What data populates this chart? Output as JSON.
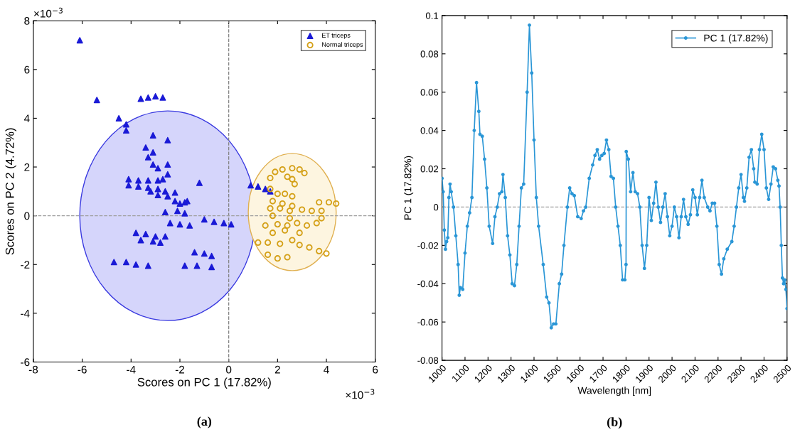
{
  "chart_data": [
    {
      "type": "scatter",
      "xlabel": "Scores on PC 1 (17.82%)",
      "ylabel": "Scores on PC 2 (4.72%)",
      "annotations": [
        "×10$^{−3}$",
        "×10$^{−3}$",
        "(a)"
      ],
      "xlim": [
        -8,
        6
      ],
      "xticks": [
        -8,
        -6,
        -4,
        -2,
        0,
        2,
        4,
        6
      ],
      "ylim": [
        -6,
        8
      ],
      "yticks": [
        -6,
        -4,
        -2,
        0,
        2,
        4,
        6,
        8
      ],
      "grid": false,
      "legend": "top right",
      "ref_lines": [
        {
          "axis": "x",
          "value": 0,
          "color": "#808080",
          "line_style": "dashed"
        },
        {
          "axis": "y",
          "value": 0,
          "color": "#a0a0a0",
          "line_style": "dashed"
        }
      ],
      "series": [
        {
          "name": "ET triceps",
          "color": "#1a1ad6",
          "marker": "triangle",
          "x": [
            -6.1,
            -5.4,
            -4.5,
            -4.2,
            -4.2,
            -3.6,
            -3.3,
            -3.0,
            -2.7,
            -3.1,
            -2.5,
            -3.4,
            -3.1,
            -3.3,
            -3.1,
            -2.9,
            -2.5,
            -2.5,
            -1.2,
            -4.1,
            -3.7,
            -3.3,
            -2.9,
            -2.7,
            -4.1,
            -3.7,
            -3.3,
            -2.9,
            -2.6,
            -3.2,
            -2.9,
            -2.2,
            -2.5,
            -2.2,
            -2.0,
            -1.8,
            -1.7,
            -2.1,
            -2.6,
            -1.8,
            -2.4,
            -2.0,
            -1.6,
            -3.8,
            -3.4,
            -3.0,
            -2.6,
            -3.6,
            -3.1,
            -2.8,
            -1.0,
            -0.6,
            -0.2,
            0.1,
            -4.7,
            -4.2,
            -3.8,
            -3.3,
            -1.4,
            -1.0,
            -0.7,
            -1.8,
            -1.3,
            -0.7,
            0.9,
            1.2,
            1.5,
            1.7
          ],
          "values": [
            7.2,
            4.75,
            4.0,
            3.75,
            3.5,
            4.8,
            4.85,
            4.9,
            4.85,
            3.3,
            3.1,
            2.8,
            2.6,
            2.4,
            2.1,
            1.95,
            2.1,
            1.7,
            1.35,
            1.5,
            1.45,
            1.45,
            1.45,
            1.5,
            1.25,
            1.2,
            1.15,
            1.1,
            1.0,
            1.0,
            0.85,
            0.95,
            0.8,
            0.6,
            0.5,
            0.55,
            0.6,
            0.2,
            0.15,
            0.1,
            -0.3,
            -0.35,
            -0.4,
            -0.7,
            -0.75,
            -0.85,
            -0.85,
            -1.0,
            -1.05,
            -1.1,
            -0.15,
            -0.25,
            -0.3,
            -0.35,
            -1.9,
            -1.9,
            -2.0,
            -2.05,
            -1.5,
            -1.55,
            -1.65,
            -2.05,
            -2.05,
            -2.1,
            1.25,
            1.2,
            1.1,
            1.0
          ]
        },
        {
          "name": "Normal triceps",
          "color": "#d4a017",
          "marker": "circle",
          "x": [
            1.7,
            2.0,
            2.3,
            2.6,
            1.8,
            2.2,
            2.6,
            1.7,
            2.1,
            2.5,
            3.0,
            3.4,
            3.7,
            4.1,
            4.4,
            3.8,
            3.8,
            3.6,
            1.5,
            2.0,
            2.4,
            2.8,
            3.2,
            2.5,
            1.8,
            2.3,
            2.9,
            1.2,
            1.6,
            2.1,
            2.6,
            2.9,
            3.3,
            3.7,
            4.0,
            1.6,
            2.0,
            2.4,
            1.8,
            1.7,
            1.9,
            2.2,
            2.6,
            2.9,
            3.1,
            2.6,
            2.7,
            2.4
          ],
          "values": [
            1.1,
            0.9,
            0.9,
            0.8,
            0.6,
            0.5,
            0.4,
            0.3,
            0.3,
            0.2,
            0.25,
            0.2,
            0.55,
            0.55,
            0.5,
            0.2,
            -0.1,
            -0.3,
            -0.4,
            -0.35,
            -0.4,
            -0.3,
            -0.4,
            -0.1,
            -0.7,
            -0.6,
            -0.7,
            -1.1,
            -1.1,
            -1.15,
            -1.0,
            -1.2,
            -1.3,
            -1.45,
            -1.55,
            -1.6,
            -1.75,
            -1.7,
            0.0,
            1.55,
            1.8,
            1.9,
            1.95,
            1.9,
            1.75,
            1.5,
            1.3,
            1.6
          ]
        }
      ]
    },
    {
      "type": "line",
      "xlabel": "Wavelength [nm]",
      "ylabel": "PC 1 (17.82%)",
      "annotations": [
        "(b)"
      ],
      "xlim": [
        1000,
        2500
      ],
      "xticks": [
        1000,
        1100,
        1200,
        1300,
        1400,
        1500,
        1600,
        1700,
        1800,
        1900,
        2000,
        2100,
        2200,
        2300,
        2400,
        2500
      ],
      "ylim": [
        -0.08,
        0.1
      ],
      "yticks": [
        -0.08,
        -0.06,
        -0.04,
        -0.02,
        0,
        0.02,
        0.04,
        0.06,
        0.08,
        0.1
      ],
      "grid": false,
      "legend": "top right",
      "marker": "circle",
      "line_style": "solid",
      "ref_lines": [
        {
          "axis": "y",
          "value": 0,
          "color": "#a0a0a0",
          "line_style": "dashed"
        }
      ],
      "series": [
        {
          "name": "PC 1 (17.82%)",
          "color": "#2a96d6",
          "x": [
            1000,
            1005,
            1010,
            1015,
            1020,
            1025,
            1030,
            1035,
            1040,
            1050,
            1060,
            1070,
            1075,
            1080,
            1090,
            1100,
            1110,
            1120,
            1130,
            1140,
            1150,
            1160,
            1165,
            1175,
            1185,
            1195,
            1205,
            1220,
            1230,
            1240,
            1250,
            1260,
            1265,
            1275,
            1285,
            1295,
            1305,
            1315,
            1325,
            1335,
            1345,
            1355,
            1370,
            1380,
            1390,
            1400,
            1410,
            1420,
            1440,
            1455,
            1465,
            1475,
            1485,
            1495,
            1510,
            1520,
            1530,
            1545,
            1555,
            1565,
            1575,
            1590,
            1605,
            1615,
            1625,
            1640,
            1655,
            1665,
            1675,
            1685,
            1695,
            1705,
            1715,
            1725,
            1735,
            1745,
            1755,
            1765,
            1775,
            1785,
            1795,
            1800,
            1801,
            1810,
            1820,
            1830,
            1840,
            1850,
            1860,
            1870,
            1880,
            1890,
            1900,
            1910,
            1920,
            1930,
            1940,
            1950,
            1960,
            1970,
            1980,
            1990,
            2000,
            2010,
            2020,
            2030,
            2040,
            2050,
            2060,
            2070,
            2080,
            2090,
            2100,
            2110,
            2120,
            2130,
            2140,
            2155,
            2165,
            2175,
            2185,
            2195,
            2205,
            2215,
            2225,
            2240,
            2260,
            2270,
            2280,
            2290,
            2300,
            2310,
            2315,
            2325,
            2335,
            2345,
            2355,
            2360,
            2370,
            2380,
            2390,
            2400,
            2410,
            2420,
            2430,
            2440,
            2450,
            2460,
            2465,
            2470,
            2475,
            2480,
            2485,
            2490,
            2495,
            2500
          ],
          "values": [
            0.015,
            0.008,
            -0.012,
            -0.022,
            -0.018,
            -0.016,
            0.005,
            0.012,
            0.008,
            0.0,
            -0.015,
            -0.03,
            -0.046,
            -0.042,
            -0.043,
            -0.024,
            -0.01,
            -0.003,
            0.005,
            0.04,
            0.065,
            0.05,
            0.038,
            0.037,
            0.025,
            0.01,
            -0.01,
            -0.019,
            -0.005,
            0.0,
            0.007,
            0.008,
            0.017,
            0.005,
            -0.015,
            -0.025,
            -0.04,
            -0.041,
            -0.03,
            -0.01,
            0.01,
            0.012,
            0.06,
            0.095,
            0.07,
            0.035,
            0.005,
            -0.01,
            -0.03,
            -0.047,
            -0.05,
            -0.063,
            -0.061,
            -0.061,
            -0.04,
            -0.035,
            -0.02,
            0.0,
            0.01,
            0.007,
            0.006,
            -0.005,
            -0.006,
            -0.002,
            0.0,
            0.015,
            0.022,
            0.027,
            0.03,
            0.025,
            0.027,
            0.028,
            0.035,
            0.03,
            0.016,
            0.015,
            0.0,
            -0.01,
            -0.02,
            -0.038,
            -0.038,
            -0.03,
            0.029,
            0.025,
            0.008,
            0.018,
            0.008,
            0.007,
            0.0,
            -0.02,
            -0.032,
            -0.02,
            0.005,
            -0.007,
            0.002,
            0.013,
            0.0,
            -0.008,
            0.0,
            0.007,
            -0.005,
            -0.015,
            -0.01,
            0.0,
            -0.005,
            -0.016,
            -0.005,
            0.004,
            -0.005,
            -0.009,
            -0.004,
            0.009,
            0.005,
            -0.004,
            0.005,
            0.014,
            0.005,
            0.0,
            -0.002,
            0.002,
            0.002,
            -0.01,
            -0.03,
            -0.035,
            -0.027,
            -0.022,
            -0.018,
            -0.01,
            0.0,
            0.01,
            0.017,
            0.005,
            0.003,
            0.01,
            0.026,
            0.03,
            0.02,
            0.013,
            0.012,
            0.03,
            0.038,
            0.03,
            0.01,
            0.004,
            0.012,
            0.021,
            0.02,
            0.014,
            0.011,
            0.0,
            -0.02,
            -0.037,
            -0.04,
            -0.038,
            -0.043,
            -0.053
          ]
        }
      ]
    }
  ]
}
